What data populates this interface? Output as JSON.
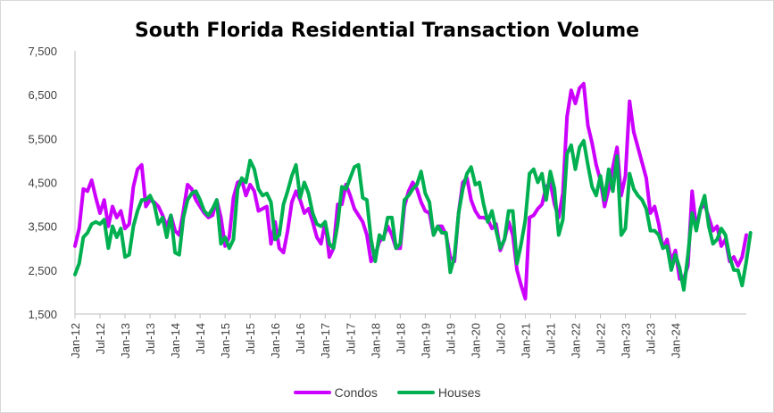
{
  "chart_data": {
    "type": "line",
    "title": "South Florida Residential Transaction Volume",
    "xlabel": "",
    "ylabel": "",
    "ylim": [
      1500,
      7500
    ],
    "yticks": [
      "1,500",
      "2,500",
      "3,500",
      "4,500",
      "5,500",
      "6,500",
      "7,500"
    ],
    "ytick_values": [
      1500,
      2500,
      3500,
      4500,
      5500,
      6500,
      7500
    ],
    "xticks": [
      "Jan-12",
      "Jul-12",
      "Jan-13",
      "Jul-13",
      "Jan-14",
      "Jul-14",
      "Jan-15",
      "Jul-15",
      "Jan-16",
      "Jul-16",
      "Jan-17",
      "Jul-17",
      "Jan-18",
      "Jul-18",
      "Jan-19",
      "Jul-19",
      "Jan-20",
      "Jul-20",
      "Jan-21",
      "Jul-21",
      "Jan-22",
      "Jul-22",
      "Jan-23",
      "Jul-23",
      "Jan-24"
    ],
    "x_start": "Jan-12",
    "x_end": "Mar-24",
    "gridlines": false,
    "legend_position": "bottom",
    "series": [
      {
        "name": "Condos",
        "color": "#cc00ff",
        "values": [
          3050,
          3450,
          4350,
          4300,
          4550,
          4150,
          3800,
          4100,
          3500,
          3950,
          3700,
          3850,
          3450,
          3550,
          4400,
          4800,
          4900,
          3950,
          4100,
          4050,
          3950,
          3750,
          3500,
          3750,
          3400,
          3300,
          3850,
          4450,
          4350,
          4100,
          3950,
          3800,
          3700,
          3750,
          4100,
          3700,
          3050,
          3250,
          4150,
          4500,
          4550,
          4200,
          4450,
          4300,
          3850,
          3900,
          3950,
          3100,
          3600,
          3000,
          2900,
          3400,
          4050,
          4300,
          4100,
          3800,
          3900,
          3600,
          3250,
          3100,
          3600,
          2800,
          3000,
          4000,
          4000,
          4450,
          4200,
          3900,
          3750,
          3600,
          3300,
          2700,
          2850,
          3150,
          3250,
          3500,
          3300,
          3000,
          3000,
          3950,
          4300,
          4500,
          4350,
          4050,
          3850,
          3800,
          3300,
          3500,
          3500,
          3300,
          2800,
          2700,
          3800,
          4500,
          4600,
          4100,
          3850,
          3700,
          3700,
          3650,
          3450,
          3550,
          2950,
          3200,
          3600,
          3300,
          2500,
          2150,
          1850,
          3700,
          3750,
          3900,
          4000,
          4400,
          4500,
          4000,
          3700,
          4250,
          6000,
          6600,
          6300,
          6650,
          6750,
          5800,
          5400,
          4900,
          4550,
          3950,
          4350,
          4850,
          5300,
          4200,
          4650,
          6350,
          5650,
          5300,
          4950,
          4600,
          3800,
          3950,
          3550,
          3000,
          3200,
          2700,
          2950,
          2300,
          2300,
          2600,
          4300,
          3450,
          3900,
          4000,
          3700,
          3400,
          3500,
          3050,
          3200,
          2700,
          2800,
          2600,
          2800,
          3300
        ]
      },
      {
        "name": "Houses",
        "color": "#00b050",
        "values": [
          2400,
          2650,
          3250,
          3350,
          3550,
          3600,
          3550,
          3650,
          3000,
          3500,
          3250,
          3450,
          2800,
          2850,
          3500,
          3850,
          4100,
          4100,
          4200,
          4000,
          3550,
          3700,
          3250,
          3750,
          2900,
          2850,
          3700,
          4100,
          4250,
          4300,
          4100,
          3850,
          3750,
          3900,
          4100,
          3100,
          3250,
          3000,
          3200,
          4350,
          4600,
          4500,
          5000,
          4800,
          4350,
          4200,
          4250,
          4050,
          3200,
          3300,
          4000,
          4300,
          4650,
          4900,
          4150,
          4500,
          4250,
          3800,
          3550,
          3500,
          3600,
          3100,
          3000,
          3550,
          4400,
          4350,
          4600,
          4850,
          4900,
          4150,
          4100,
          3200,
          2700,
          3300,
          3200,
          3700,
          3700,
          3000,
          3100,
          4100,
          4200,
          4350,
          4450,
          4750,
          4250,
          4050,
          3300,
          3500,
          3350,
          3350,
          2450,
          2800,
          3800,
          4350,
          4700,
          4850,
          4450,
          4500,
          4000,
          3600,
          3850,
          3400,
          3000,
          3200,
          3850,
          3850,
          2650,
          3100,
          3650,
          4700,
          4800,
          4500,
          4700,
          4100,
          4750,
          4350,
          3300,
          3650,
          5150,
          5350,
          4800,
          5300,
          5450,
          4900,
          4400,
          4200,
          4650,
          4100,
          4800,
          4300,
          5100,
          3300,
          3450,
          4700,
          4350,
          4200,
          4100,
          3900,
          3400,
          3400,
          3300,
          3000,
          3050,
          2500,
          2850,
          2550,
          2050,
          2850,
          3800,
          3400,
          3900,
          4200,
          3500,
          3100,
          3200,
          3450,
          3300,
          2800,
          2500,
          2500,
          2150,
          2700,
          3350
        ]
      }
    ]
  }
}
